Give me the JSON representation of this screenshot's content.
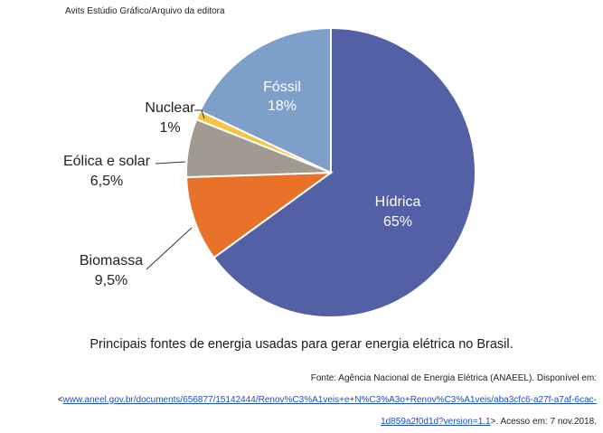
{
  "credit": "Avits Estúdio Gráfico/Arquivo da editora",
  "caption": "Principais fontes de energia usadas para gerar energia elétrica no Brasil.",
  "source": {
    "line1": "Fonte: Agência Nacional de Energia Elétrica (ANAEEL). Disponível em:",
    "open": "<",
    "url_part1": "www.aneel.gov.br/documents/656877/15142444/Renov%C3%A1veis+e+N%C3%A3o+Renov%C3%A1veis/aba3cfc6-a27f-a7af-6cac-",
    "url_part2": "1d859a2f0d1d?version=1.1",
    "tail": ">. Acesso em: 7 nov.2018."
  },
  "chart_data": {
    "type": "pie",
    "slices": [
      {
        "name": "Hídrica",
        "label": "65%",
        "value": 65,
        "color": "#5360a5"
      },
      {
        "name": "Biomassa",
        "label": "9,5%",
        "value": 9.5,
        "color": "#e8722a"
      },
      {
        "name": "Eólica e solar",
        "label": "6,5%",
        "value": 6.5,
        "color": "#a19a90"
      },
      {
        "name": "Nuclear",
        "label": "1%",
        "value": 1,
        "color": "#f5c542"
      },
      {
        "name": "Fóssil",
        "label": "18%",
        "value": 18,
        "color": "#7f9fcb"
      }
    ]
  }
}
